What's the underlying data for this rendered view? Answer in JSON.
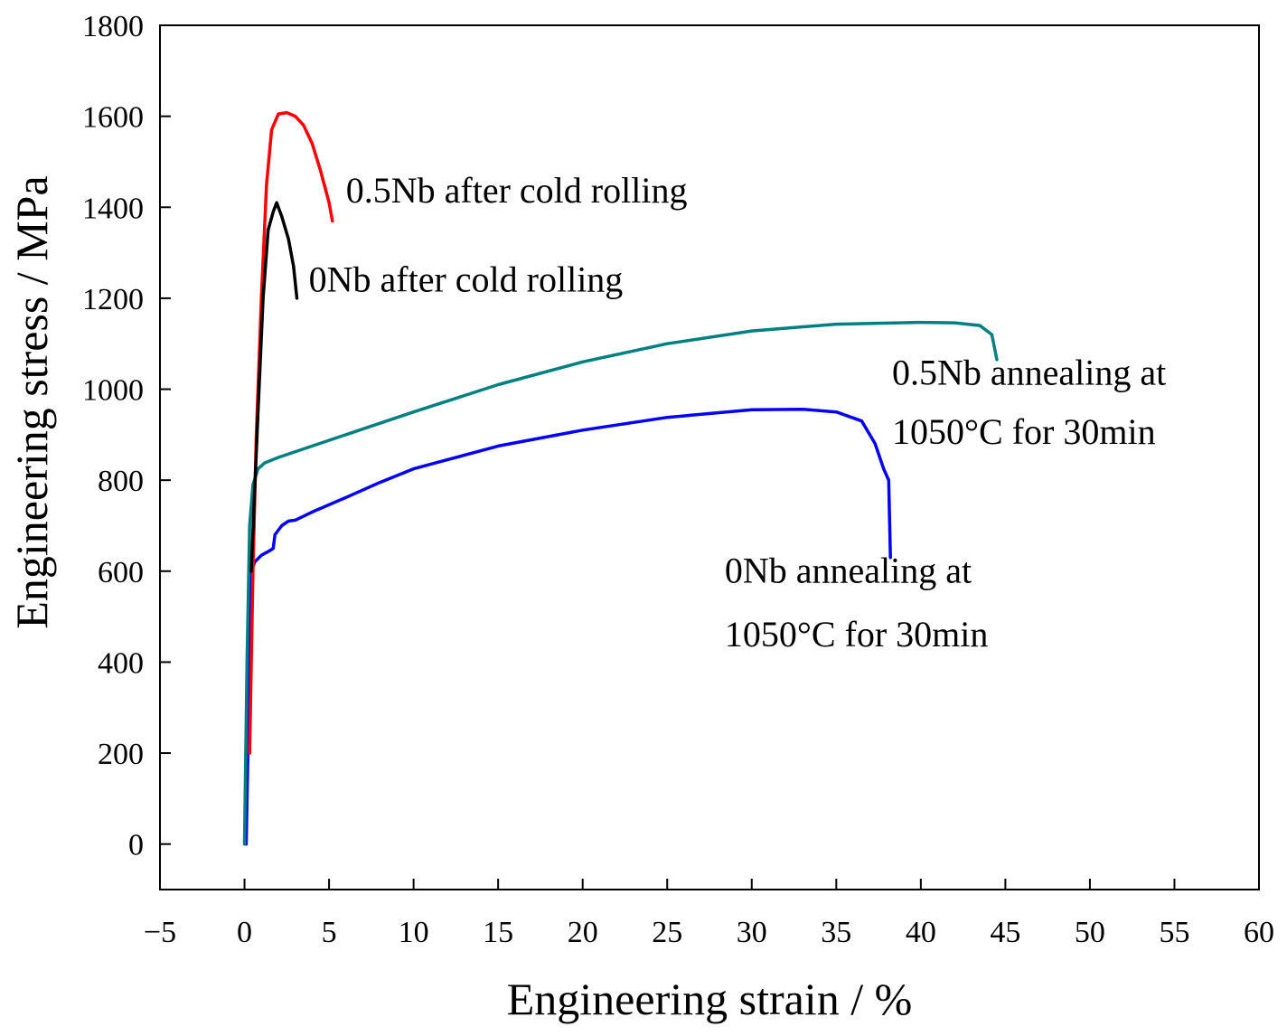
{
  "chart_data": {
    "type": "line",
    "xlabel": "Engineering strain / %",
    "ylabel": "Engineering stress / MPa",
    "xlim": [
      -5,
      60
    ],
    "ylim": [
      -100,
      1800
    ],
    "x_ticks": [
      -5,
      0,
      5,
      10,
      15,
      20,
      25,
      30,
      35,
      40,
      45,
      50,
      55,
      60
    ],
    "x_tick_labels": [
      "−5",
      "0",
      "5",
      "10",
      "15",
      "20",
      "25",
      "30",
      "35",
      "40",
      "45",
      "50",
      "55",
      "60"
    ],
    "y_ticks": [
      0,
      200,
      400,
      600,
      800,
      1000,
      1200,
      1400,
      1600,
      1800
    ],
    "y_tick_labels": [
      "0",
      "200",
      "400",
      "600",
      "800",
      "1000",
      "1200",
      "1400",
      "1600",
      "1800"
    ],
    "grid": false,
    "series": [
      {
        "color": "#0000ff",
        "points": [
          [
            0.1,
            0
          ],
          [
            0.25,
            300
          ],
          [
            0.4,
            600
          ],
          [
            0.6,
            620
          ],
          [
            1.0,
            635
          ],
          [
            1.5,
            645
          ],
          [
            1.7,
            650
          ],
          [
            1.8,
            680
          ],
          [
            2.2,
            700
          ],
          [
            2.6,
            710
          ],
          [
            3.0,
            712
          ],
          [
            4,
            730
          ],
          [
            6,
            762
          ],
          [
            8,
            795
          ],
          [
            10,
            825
          ],
          [
            15,
            875
          ],
          [
            20,
            910
          ],
          [
            25,
            938
          ],
          [
            30,
            955
          ],
          [
            33,
            956
          ],
          [
            35,
            950
          ],
          [
            36.5,
            930
          ],
          [
            37.3,
            880
          ],
          [
            37.8,
            825
          ],
          [
            38.1,
            800
          ],
          [
            38.2,
            630
          ]
        ]
      },
      {
        "color": "#008080",
        "points": [
          [
            0,
            0
          ],
          [
            0.15,
            400
          ],
          [
            0.3,
            700
          ],
          [
            0.5,
            790
          ],
          [
            0.8,
            825
          ],
          [
            1.2,
            838
          ],
          [
            2,
            850
          ],
          [
            4,
            875
          ],
          [
            6,
            900
          ],
          [
            10,
            950
          ],
          [
            15,
            1010
          ],
          [
            20,
            1060
          ],
          [
            25,
            1100
          ],
          [
            30,
            1128
          ],
          [
            35,
            1143
          ],
          [
            40,
            1147
          ],
          [
            42,
            1146
          ],
          [
            43.5,
            1140
          ],
          [
            44.2,
            1120
          ],
          [
            44.5,
            1065
          ]
        ]
      },
      {
        "color": "#ff0000",
        "points": [
          [
            0.3,
            200
          ],
          [
            0.5,
            600
          ],
          [
            0.7,
            900
          ],
          [
            1.0,
            1200
          ],
          [
            1.3,
            1450
          ],
          [
            1.6,
            1570
          ],
          [
            2.0,
            1605
          ],
          [
            2.5,
            1608
          ],
          [
            3.0,
            1600
          ],
          [
            3.5,
            1580
          ],
          [
            4.0,
            1540
          ],
          [
            4.5,
            1480
          ],
          [
            5.0,
            1410
          ],
          [
            5.2,
            1370
          ]
        ]
      },
      {
        "color": "#000000",
        "points": [
          [
            0.4,
            600
          ],
          [
            0.8,
            950
          ],
          [
            1.1,
            1200
          ],
          [
            1.4,
            1350
          ],
          [
            1.7,
            1390
          ],
          [
            1.9,
            1410
          ],
          [
            2.2,
            1380
          ],
          [
            2.6,
            1330
          ],
          [
            2.9,
            1270
          ],
          [
            3.1,
            1200
          ]
        ]
      }
    ],
    "annotations": [
      {
        "text": "0.5Nb after cold rolling",
        "x": 6.0,
        "y": 1410
      },
      {
        "text": "0Nb after cold rolling",
        "x": 3.8,
        "y": 1215
      },
      {
        "text": "0.5Nb annealing at",
        "x": 38.3,
        "y": 1010
      },
      {
        "text": "1050°C for 30min",
        "x": 38.3,
        "y": 880
      },
      {
        "text": "0Nb annealing at",
        "x": 28.4,
        "y": 575
      },
      {
        "text": "1050°C for 30min",
        "x": 28.4,
        "y": 435
      }
    ]
  }
}
